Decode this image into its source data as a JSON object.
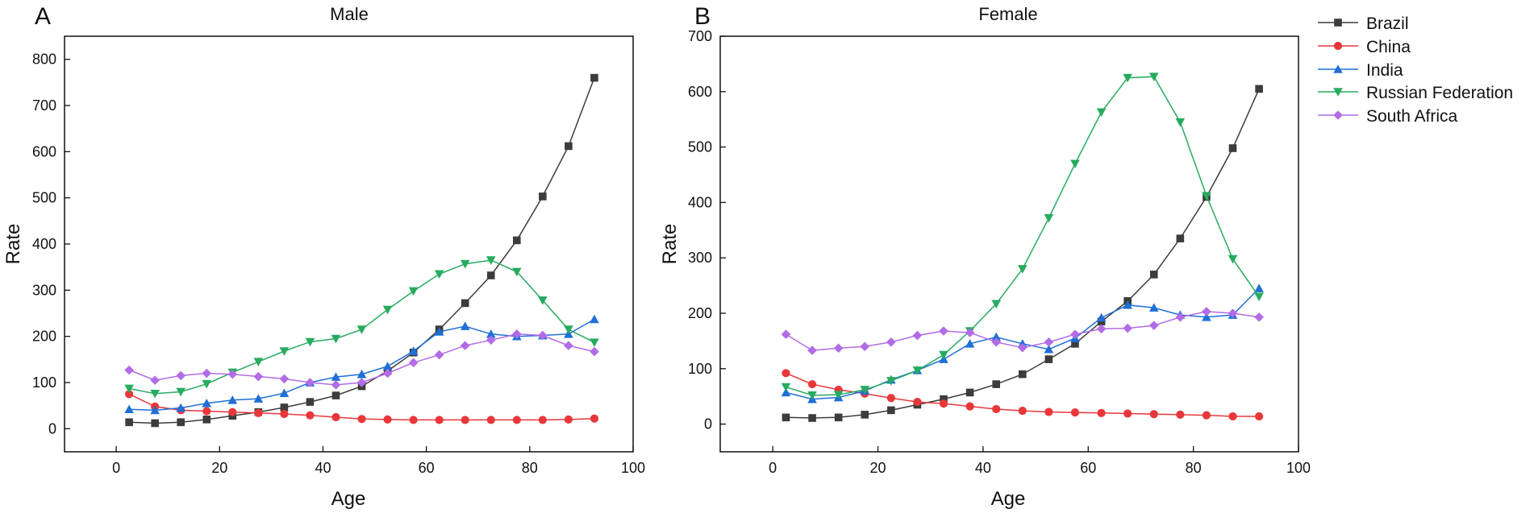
{
  "colors": {
    "Brazil": "#3c3c3c",
    "China": "#e8373a",
    "India": "#1f6fd6",
    "Russian Federation": "#27ab5f",
    "South Africa": "#b26ce6"
  },
  "legend": {
    "items": [
      "Brazil",
      "China",
      "India",
      "Russian Federation",
      "South Africa"
    ]
  },
  "chart_data": [
    {
      "type": "line",
      "panel_label": "A",
      "title": "Male",
      "xlabel": "Age",
      "ylabel": "Rate",
      "xlim": [
        -10,
        100
      ],
      "ylim": [
        -50,
        850
      ],
      "xticks": [
        0,
        20,
        40,
        60,
        80,
        100
      ],
      "yticks": [
        0,
        100,
        200,
        300,
        400,
        500,
        600,
        700,
        800
      ],
      "x": [
        2.5,
        7.5,
        12.5,
        17.5,
        22.5,
        27.5,
        32.5,
        37.5,
        42.5,
        47.5,
        52.5,
        57.5,
        62.5,
        67.5,
        72.5,
        77.5,
        82.5,
        87.5,
        92.5
      ],
      "series": [
        {
          "name": "Brazil",
          "marker": "square",
          "values": [
            14,
            12,
            14,
            20,
            28,
            36,
            46,
            58,
            72,
            92,
            125,
            165,
            215,
            272,
            332,
            408,
            503,
            612,
            760
          ]
        },
        {
          "name": "China",
          "marker": "circle",
          "values": [
            75,
            48,
            40,
            38,
            36,
            34,
            32,
            29,
            25,
            21,
            20,
            19,
            19,
            19,
            19,
            19,
            19,
            20,
            22
          ]
        },
        {
          "name": "India",
          "marker": "triangle-up",
          "values": [
            42,
            40,
            45,
            55,
            62,
            65,
            77,
            100,
            112,
            118,
            135,
            168,
            210,
            222,
            205,
            200,
            202,
            205,
            237
          ]
        },
        {
          "name": "Russian Federation",
          "marker": "triangle-down",
          "values": [
            87,
            76,
            80,
            97,
            122,
            145,
            168,
            188,
            195,
            215,
            258,
            298,
            335,
            357,
            365,
            340,
            278,
            215,
            187
          ]
        },
        {
          "name": "South Africa",
          "marker": "diamond",
          "values": [
            127,
            105,
            115,
            120,
            118,
            113,
            108,
            100,
            95,
            100,
            120,
            143,
            160,
            180,
            192,
            205,
            202,
            180,
            167
          ]
        }
      ]
    },
    {
      "type": "line",
      "panel_label": "B",
      "title": "Female",
      "xlabel": "Age",
      "ylabel": "Rate",
      "xlim": [
        -10,
        100
      ],
      "ylim": [
        -50,
        700
      ],
      "xticks": [
        0,
        20,
        40,
        60,
        80,
        100
      ],
      "yticks": [
        0,
        100,
        200,
        300,
        400,
        500,
        600,
        700
      ],
      "x": [
        2.5,
        7.5,
        12.5,
        17.5,
        22.5,
        27.5,
        32.5,
        37.5,
        42.5,
        47.5,
        52.5,
        57.5,
        62.5,
        67.5,
        72.5,
        77.5,
        82.5,
        87.5,
        92.5
      ],
      "series": [
        {
          "name": "Brazil",
          "marker": "square",
          "values": [
            12,
            11,
            12,
            17,
            25,
            35,
            45,
            57,
            72,
            90,
            117,
            145,
            185,
            222,
            270,
            335,
            410,
            498,
            605
          ]
        },
        {
          "name": "China",
          "marker": "circle",
          "values": [
            92,
            72,
            62,
            55,
            47,
            40,
            37,
            32,
            27,
            24,
            22,
            21,
            20,
            19,
            18,
            17,
            16,
            14,
            14
          ]
        },
        {
          "name": "India",
          "marker": "triangle-up",
          "values": [
            57,
            45,
            48,
            60,
            80,
            97,
            117,
            145,
            157,
            145,
            135,
            155,
            192,
            215,
            210,
            197,
            193,
            197,
            245
          ]
        },
        {
          "name": "Russian Federation",
          "marker": "triangle-down",
          "values": [
            67,
            52,
            53,
            62,
            78,
            97,
            125,
            168,
            217,
            280,
            372,
            470,
            563,
            625,
            627,
            545,
            412,
            298,
            230
          ]
        },
        {
          "name": "South Africa",
          "marker": "diamond",
          "values": [
            162,
            133,
            137,
            140,
            148,
            160,
            168,
            165,
            148,
            138,
            148,
            162,
            172,
            173,
            178,
            193,
            203,
            200,
            193
          ]
        }
      ]
    }
  ]
}
